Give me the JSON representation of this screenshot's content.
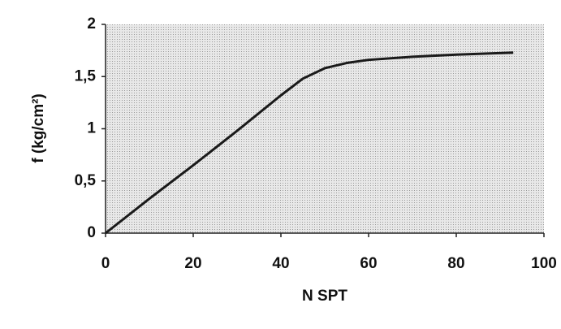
{
  "chart_data": {
    "type": "line",
    "x_label": "N SPT",
    "y_label": "f (kg/cm²)",
    "x": [
      0,
      10,
      20,
      30,
      40,
      45,
      50,
      55,
      60,
      70,
      80,
      93
    ],
    "series": [
      {
        "color": "#1a1a1a",
        "values": [
          0,
          0.33,
          0.65,
          0.98,
          1.32,
          1.48,
          1.58,
          1.63,
          1.66,
          1.69,
          1.71,
          1.73
        ]
      }
    ],
    "xlim": [
      0,
      100
    ],
    "xticks": [
      0,
      20,
      40,
      60,
      80,
      100
    ],
    "ylim": [
      0,
      2
    ],
    "yticks": [
      0,
      {
        "value": 0.5,
        "label": "0,5"
      },
      1,
      {
        "value": 1.5,
        "label": "1,5"
      },
      2
    ]
  }
}
